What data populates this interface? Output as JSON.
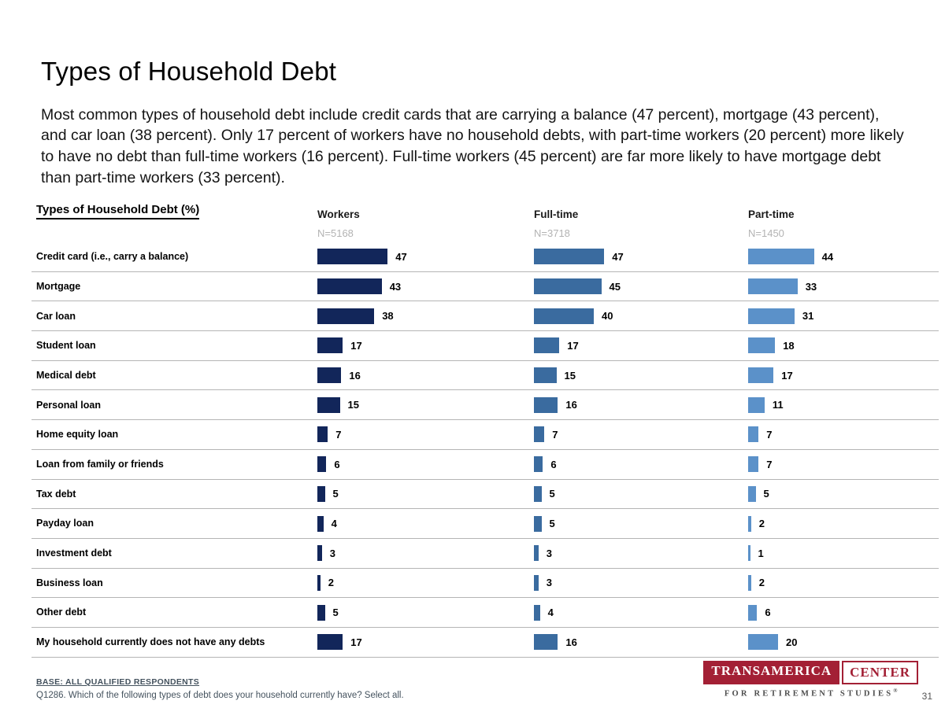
{
  "page": {
    "title": "Types of Household Debt",
    "intro": "Most common types of household debt include credit cards that are carrying a balance (47 percent), mortgage (43 percent), and car loan (38 percent). Only 17 percent of workers have no household debts, with part-time workers (20 percent) more likely to have no debt than full-time workers (16 percent). Full-time workers (45 percent) are far more likely to have mortgage debt than part-time workers (33 percent).",
    "page_number": "31"
  },
  "chart_data": {
    "type": "bar",
    "orientation": "horizontal",
    "title": "Types of Household Debt (%)",
    "value_labels": true,
    "xlim": [
      0,
      100
    ],
    "grid": "row-dividers",
    "categories": [
      "Credit card (i.e., carry a balance)",
      "Mortgage",
      "Car loan",
      "Student loan",
      "Medical debt",
      "Personal loan",
      "Home equity loan",
      "Loan from family or friends",
      "Tax debt",
      "Payday loan",
      "Investment debt",
      "Business loan",
      "Other debt",
      "My household currently does not have any debts"
    ],
    "series": [
      {
        "name": "Workers",
        "n_label": "N=5168",
        "color": "#12265a",
        "values": [
          47,
          43,
          38,
          17,
          16,
          15,
          7,
          6,
          5,
          4,
          3,
          2,
          5,
          17
        ]
      },
      {
        "name": "Full-time",
        "n_label": "N=3718",
        "color": "#3a6b9f",
        "values": [
          47,
          45,
          40,
          17,
          15,
          16,
          7,
          6,
          5,
          5,
          3,
          3,
          4,
          16
        ]
      },
      {
        "name": "Part-time",
        "n_label": "N=1450",
        "color": "#5b91c9",
        "values": [
          44,
          33,
          31,
          18,
          17,
          11,
          7,
          7,
          5,
          2,
          1,
          2,
          6,
          20
        ]
      }
    ]
  },
  "footer": {
    "base_label": "BASE: ALL QUALIFIED RESPONDENTS",
    "question": "Q1286. Which of the following types of debt does your household currently have? Select all.",
    "logo": {
      "brand": "TRANSAMERICA",
      "brand_suffix": "CENTER",
      "tagline": "FOR RETIREMENT STUDIES",
      "registered_mark": "®",
      "color": "#a32035"
    }
  }
}
